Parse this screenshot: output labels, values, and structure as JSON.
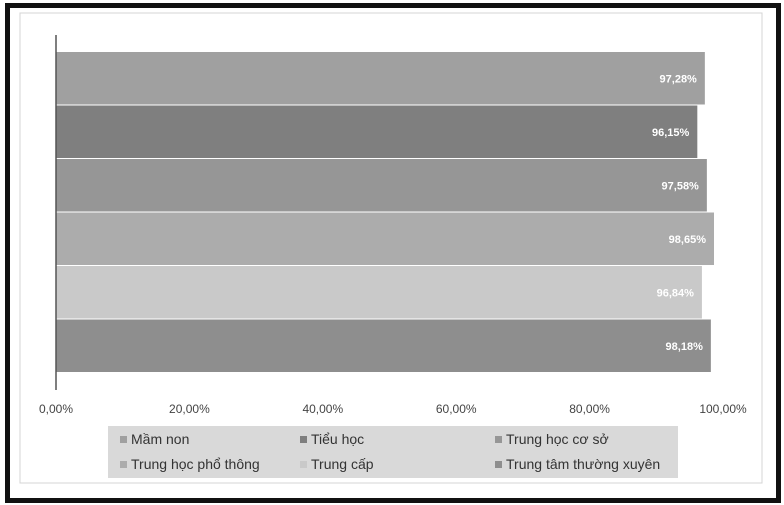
{
  "chart_data": {
    "type": "bar",
    "orientation": "horizontal",
    "title": "",
    "xlabel": "",
    "ylabel": "",
    "xlim": [
      0,
      100
    ],
    "x_ticks": [
      "0,00%",
      "20,00%",
      "40,00%",
      "60,00%",
      "80,00%",
      "100,00%"
    ],
    "grid": false,
    "legend_position": "bottom",
    "series": [
      {
        "name": "Mầm non",
        "value": 97.28,
        "label": "97,28%",
        "color": "#a0a0a0"
      },
      {
        "name": "Tiểu học",
        "value": 96.15,
        "label": "96,15%",
        "color": "#7f7f7f"
      },
      {
        "name": "Trung học cơ sở",
        "value": 97.58,
        "label": "97,58%",
        "color": "#969696"
      },
      {
        "name": "Trung học phổ thông",
        "value": 98.65,
        "label": "98,65%",
        "color": "#acacac"
      },
      {
        "name": "Trung cấp",
        "value": 96.84,
        "label": "96,84%",
        "color": "#c9c9c9"
      },
      {
        "name": "Trung tâm thường xuyên",
        "value": 98.18,
        "label": "98,18%",
        "color": "#8e8e8e"
      }
    ]
  }
}
